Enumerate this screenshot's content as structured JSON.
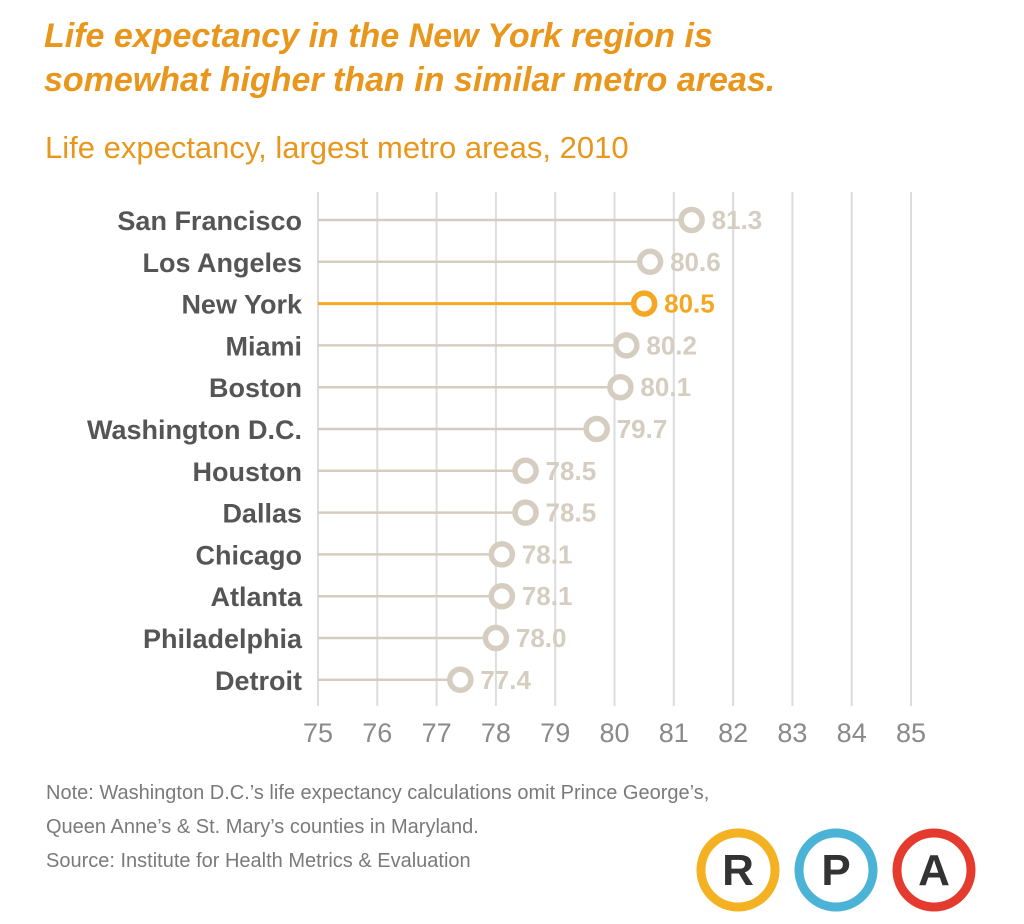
{
  "headline": {
    "line1": "Life expectancy in the New York region is",
    "line2": "somewhat higher than in similar metro areas."
  },
  "subtitle": "Life expectancy, largest metro areas, 2010",
  "note": {
    "line1": "Note: Washington D.C.’s life expectancy calculations omit Prince George’s,",
    "line2": "Queen Anne’s & St. Mary’s counties in Maryland.",
    "source": "Source: Institute for Health Metrics & Evaluation"
  },
  "logo": {
    "letters": [
      "R",
      "P",
      "A"
    ],
    "colors": [
      "#f4b223",
      "#4ab3d6",
      "#e53b2f"
    ]
  },
  "colors": {
    "accent": "#f5a623",
    "mark": "#d6cdc1",
    "grid": "#dcdcdc",
    "label": "#555555",
    "tick": "#8a8a8a"
  },
  "chart_data": {
    "type": "dot",
    "title": "Life expectancy, largest metro areas, 2010",
    "xlim": [
      75,
      85
    ],
    "xticks": [
      75,
      76,
      77,
      78,
      79,
      80,
      81,
      82,
      83,
      84,
      85
    ],
    "grid": true,
    "highlight": "New York",
    "categories": [
      "San Francisco",
      "Los Angeles",
      "New York",
      "Miami",
      "Boston",
      "Washington D.C.",
      "Houston",
      "Dallas",
      "Chicago",
      "Atlanta",
      "Philadelphia",
      "Detroit"
    ],
    "values": [
      81.3,
      80.6,
      80.5,
      80.2,
      80.1,
      79.7,
      78.5,
      78.5,
      78.1,
      78.1,
      78.0,
      77.4
    ],
    "value_labels": [
      "81.3",
      "80.6",
      "80.5",
      "80.2",
      "80.1",
      "79.7",
      "78.5",
      "78.5",
      "78.1",
      "78.1",
      "78.0",
      "77.4"
    ]
  }
}
